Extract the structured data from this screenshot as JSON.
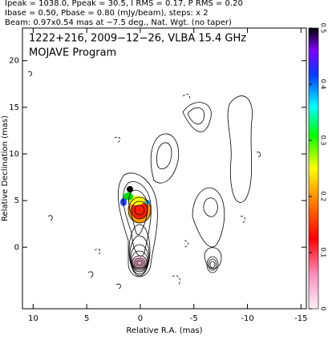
{
  "chart_data": {
    "type": "image",
    "header": [
      "Ipeak = 1038.0, Ppeak = 30.5, I RMS = 0.17, P RMS = 0.20",
      "Ibase = 0.50, Pbase = 0.80 (mJy/beam), steps: x 2",
      "Beam: 0.97x0.54 mas at −7.5 deg., Nat. Wgt. (no taper)"
    ],
    "title": "1222+216, 2009−12−26, VLBA 15.4 GHz",
    "subtitle": "MOJAVE Program",
    "xlabel": "Relative R.A. (mas)",
    "ylabel": "Relative Declination (mas)",
    "xlim": [
      11,
      -15.5
    ],
    "xticks": [
      10,
      5,
      0,
      -5,
      -10,
      -15
    ],
    "ylim": [
      -6.6,
      23.5
    ],
    "yticks": [
      0,
      5,
      10,
      15,
      20
    ],
    "colorbar": {
      "lim": [
        0,
        0.5
      ],
      "ticks": [
        0,
        0.1,
        0.2,
        0.3,
        0.4,
        0.5
      ]
    }
  }
}
